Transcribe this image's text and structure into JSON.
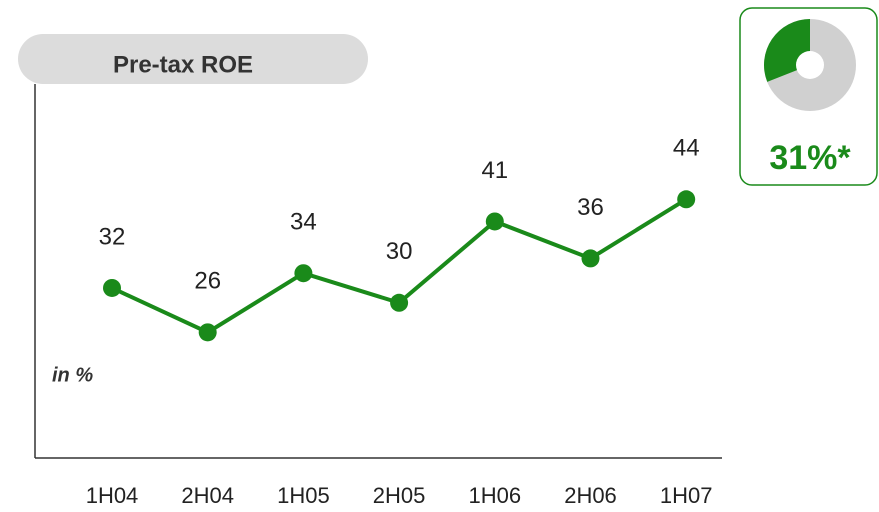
{
  "chart_data": {
    "type": "line",
    "title": "Pre-tax ROE",
    "ylabel": "in %",
    "categories": [
      "1H04",
      "2H04",
      "1H05",
      "2H05",
      "1H06",
      "2H06",
      "1H07"
    ],
    "series": [
      {
        "name": "Pre-tax ROE",
        "color": "#1a8a1a",
        "values": [
          32,
          26,
          34,
          30,
          41,
          36,
          44
        ]
      }
    ],
    "ylim": [
      9,
      60
    ],
    "kpi": {
      "value": 31,
      "label": "31%*",
      "color": "#1a8a1a"
    }
  }
}
